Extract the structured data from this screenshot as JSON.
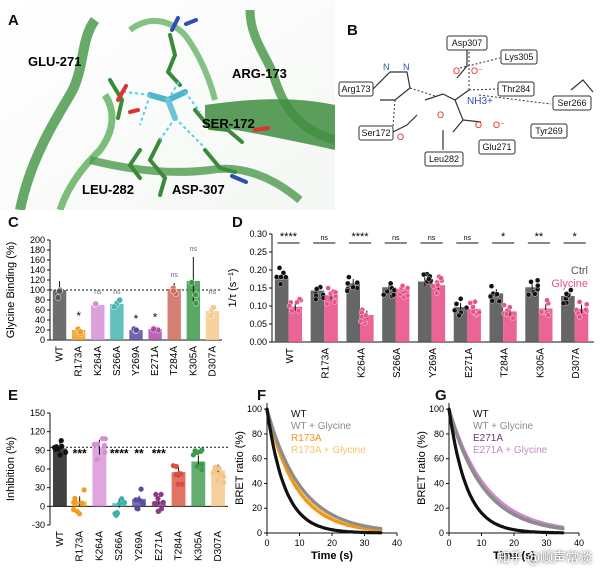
{
  "panels": {
    "A": {
      "label": "A",
      "residues": [
        "GLU-271",
        "ARG-173",
        "SER-172",
        "LEU-282",
        "ASP-307"
      ]
    },
    "B": {
      "label": "B",
      "boxes": [
        "Asp307",
        "Lys305",
        "Arg173",
        "Thr284",
        "Ser266",
        "Ser172",
        "Leu282",
        "Glu271",
        "Tyr269"
      ],
      "nh3": "NH3+"
    }
  },
  "chart_data": [
    {
      "id": "C",
      "type": "bar",
      "ylabel": "Glycine Binding (%)",
      "yticks": [
        0,
        20,
        40,
        60,
        80,
        100,
        120,
        140,
        160,
        180,
        200
      ],
      "ylim": [
        0,
        200
      ],
      "categories": [
        "WT",
        "R173A",
        "K264A",
        "S266A",
        "Y269A",
        "E271A",
        "T284A",
        "K305A",
        "D307A"
      ],
      "values": [
        100,
        20,
        70,
        72,
        20,
        22,
        102,
        118,
        58
      ],
      "errors": [
        18,
        8,
        6,
        8,
        2,
        3,
        12,
        48,
        12
      ],
      "colors": [
        "#555555",
        "#f39c1e",
        "#d68fd6",
        "#45b5ad",
        "#5a4aa0",
        "#b04aa8",
        "#cf6a5d",
        "#3c9a4a",
        "#f7c98c"
      ],
      "significance": [
        "",
        "*",
        "ns",
        "ns",
        "*",
        "*",
        "ns",
        "ns",
        "ns"
      ],
      "reference_line": 100
    },
    {
      "id": "D",
      "type": "bar",
      "ylabel": "1/τ (s⁻¹)",
      "yticks": [
        0.0,
        0.05,
        0.1,
        0.15,
        0.2,
        0.25,
        0.3
      ],
      "ytick_labels": [
        "0.00",
        "0.05",
        "0.10",
        "0.15",
        "0.20",
        "0.25",
        "0.30"
      ],
      "ylim": [
        0,
        0.3
      ],
      "categories": [
        "WT",
        "R173A",
        "K264A",
        "S266A",
        "Y269A",
        "E271A",
        "T284A",
        "K305A",
        "D307A"
      ],
      "series": [
        {
          "name": "Ctrl",
          "color": "#555555",
          "values": [
            0.183,
            0.143,
            0.163,
            0.152,
            0.168,
            0.097,
            0.135,
            0.152,
            0.128
          ]
        },
        {
          "name": "Glycine",
          "color": "#e8538a",
          "values": [
            0.098,
            0.13,
            0.075,
            0.148,
            0.158,
            0.092,
            0.085,
            0.093,
            0.092
          ]
        }
      ],
      "significance": [
        "****",
        "ns",
        "****",
        "ns",
        "ns",
        "ns",
        "*",
        "**",
        "*"
      ]
    },
    {
      "id": "E",
      "type": "bar",
      "ylabel": "Inhibition (%)",
      "yticks": [
        -30,
        0,
        30,
        60,
        90,
        120,
        150
      ],
      "ylim": [
        -30,
        150
      ],
      "categories": [
        "WT",
        "R173A",
        "K264A",
        "S266A",
        "Y269A",
        "E271A",
        "T284A",
        "K305A",
        "D307A"
      ],
      "values": [
        93,
        8,
        95,
        5,
        12,
        8,
        55,
        72,
        58
      ],
      "errors": [
        12,
        8,
        12,
        7,
        5,
        5,
        8,
        10,
        9
      ],
      "colors": [
        "#111111",
        "#f39c1e",
        "#d68fd6",
        "#3fb1ad",
        "#5a4aa0",
        "#8a3a86",
        "#d9503f",
        "#3c9a4a",
        "#f4c584"
      ],
      "significance": [
        "",
        "***",
        "",
        "****",
        "**",
        "***",
        "",
        "",
        ""
      ],
      "reference_line": 95
    },
    {
      "id": "F",
      "type": "line",
      "ylabel": "BRET ratio (%)",
      "xlabel": "Time (s)",
      "xticks": [
        0,
        10,
        20,
        30,
        40
      ],
      "yticks": [
        0,
        20,
        40,
        60,
        80,
        100
      ],
      "xlim": [
        0,
        40
      ],
      "ylim": [
        0,
        105
      ],
      "series": [
        {
          "name": "WT",
          "color": "#111111",
          "tau": 5.5
        },
        {
          "name": "WT + Glycine",
          "color": "#8c8c8c",
          "tau": 10.5
        },
        {
          "name": "R173A",
          "color": "#f0961a",
          "tau": 9.0
        },
        {
          "name": "R173A + Glycine",
          "color": "#f6c66a",
          "tau": 9.8
        }
      ]
    },
    {
      "id": "G",
      "type": "line",
      "ylabel": "BRET ratio (%)",
      "xlabel": "Time (s)",
      "xticks": [
        0,
        10,
        20,
        30,
        40
      ],
      "yticks": [
        0,
        20,
        40,
        60,
        80,
        100
      ],
      "xlim": [
        0,
        40
      ],
      "ylim": [
        0,
        105
      ],
      "series": [
        {
          "name": "WT",
          "color": "#111111",
          "tau": 5.5
        },
        {
          "name": "WT + Glycine",
          "color": "#8c8c8c",
          "tau": 10.5
        },
        {
          "name": "E271A",
          "color": "#7a2f7e",
          "tau": 10.5
        },
        {
          "name": "E271A + Glycine",
          "color": "#c68bc8",
          "tau": 11.5
        }
      ]
    }
  ],
  "watermark": "知乎 @顺声常谈"
}
